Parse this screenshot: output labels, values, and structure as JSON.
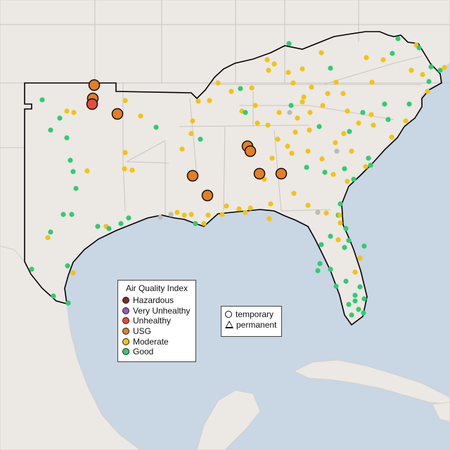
{
  "legend": {
    "title": "Air Quality Index",
    "categories": [
      {
        "label": "Hazardous",
        "color": "#7e2b22"
      },
      {
        "label": "Very Unhealthy",
        "color": "#9b59b6"
      },
      {
        "label": "Unhealthy",
        "color": "#e74c3c"
      },
      {
        "label": "USG",
        "color": "#e67e22"
      },
      {
        "label": "Moderate",
        "color": "#f1c40f"
      },
      {
        "label": "Good",
        "color": "#2ecc71"
      }
    ]
  },
  "monitor_types": {
    "temporary": "temporary",
    "permanent": "permanent"
  },
  "colors": {
    "water": "#c9d6e3",
    "land": "#ece8e4",
    "border": "#c9c5c1",
    "highlight_outline": "#000000",
    "no_data": "#bbbbbb"
  },
  "stations": {
    "usg": 12,
    "unhealthy": 1
  }
}
